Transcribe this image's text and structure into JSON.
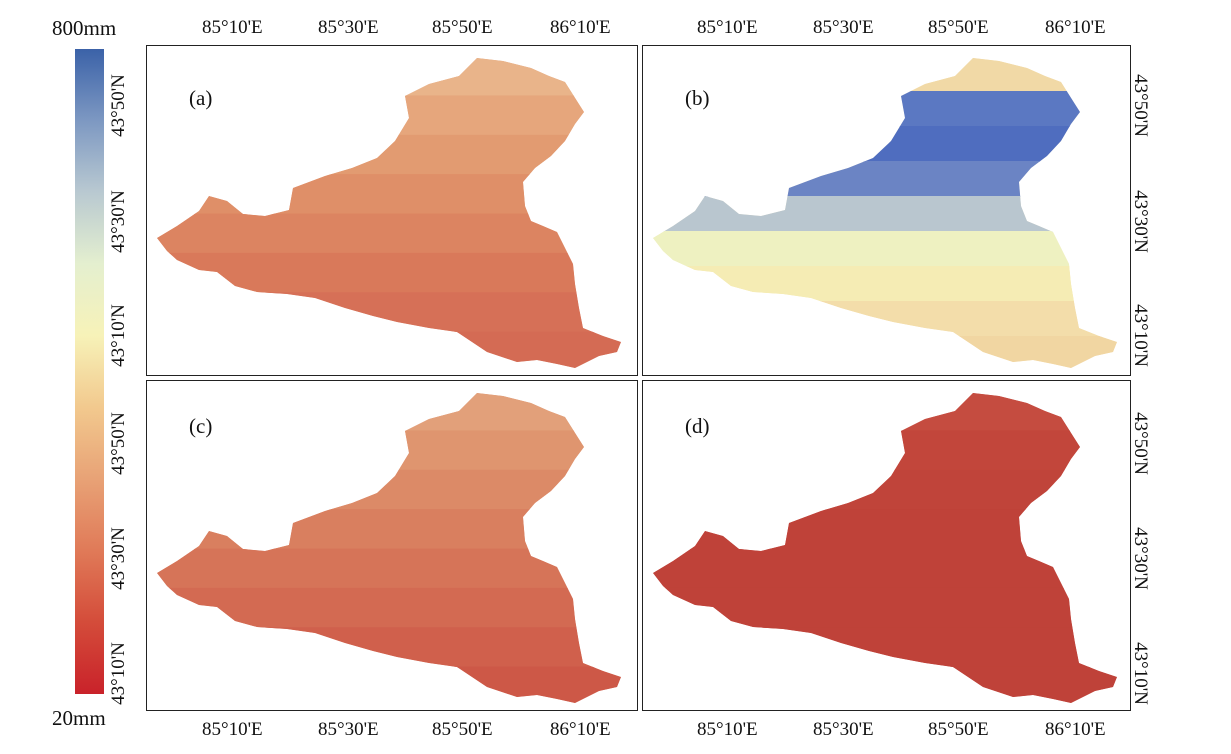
{
  "colorbar": {
    "max_label": "800mm",
    "min_label": "20mm",
    "colors": [
      "#3b62a8",
      "#7d98c2",
      "#b9c9d1",
      "#e4efcf",
      "#f7f2b8",
      "#f2c98e",
      "#e8a276",
      "#e07a58",
      "#d44c3a",
      "#c9222a"
    ]
  },
  "axes": {
    "lon_ticks": [
      "85°10'E",
      "85°30'E",
      "85°50'E",
      "86°10'E"
    ],
    "lat_ticks": [
      "43°50'N",
      "43°30'N",
      "43°10'N"
    ]
  },
  "panels": [
    {
      "label": "(a)",
      "fill": "#dd8460",
      "colors": [
        "#e9b48a",
        "#e6a67c",
        "#e29b71",
        "#df8f68",
        "#dc8461",
        "#d9795a",
        "#d67057",
        "#d46b54"
      ]
    },
    {
      "label": "(b)",
      "fill": "#f3dca0",
      "colors": [
        "#f1d9a6",
        "#5b78c2",
        "#4f6dbf",
        "#6b84c4",
        "#b9c6cf",
        "#eef1c1",
        "#f5ecb4",
        "#f3ddaa",
        "#f1d6a2"
      ]
    },
    {
      "label": "(c)",
      "fill": "#d87558",
      "colors": [
        "#e2a07a",
        "#df956f",
        "#dc8a67",
        "#d97f5f",
        "#d67458",
        "#d36a52",
        "#d0604c",
        "#cd5847"
      ]
    },
    {
      "label": "(d)",
      "fill": "#c2453a",
      "colors": [
        "#c54c40",
        "#c2463b",
        "#c0443a",
        "#bf4239",
        "#bf4239",
        "#bf4239",
        "#bf4239",
        "#bf4239"
      ]
    }
  ]
}
